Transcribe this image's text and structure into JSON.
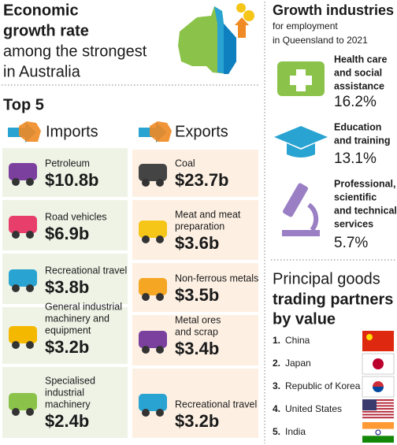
{
  "header": {
    "lines_bold": [
      "Economic",
      "growth rate"
    ],
    "lines": [
      "among the strongest",
      "in Australia"
    ]
  },
  "top5": {
    "title": "Top 5",
    "imports": {
      "title": "Imports",
      "items": [
        {
          "label": [
            "Petroleum"
          ],
          "value": "$10.8b"
        },
        {
          "label": [
            "Road vehicles"
          ],
          "value": "$6.9b"
        },
        {
          "label": [
            "Recreational travel"
          ],
          "value": "$3.8b"
        },
        {
          "label": [
            "General industrial",
            "machinery and",
            "equipment"
          ],
          "value": "$3.2b"
        },
        {
          "label": [
            "Specialised",
            "industrial",
            "machinery"
          ],
          "value": "$2.4b"
        }
      ]
    },
    "exports": {
      "title": "Exports",
      "items": [
        {
          "label": [
            "Coal"
          ],
          "value": "$23.7b"
        },
        {
          "label": [
            "Meat and meat",
            "preparation"
          ],
          "value": "$3.6b"
        },
        {
          "label": [
            "Non-ferrous metals"
          ],
          "value": "$3.5b"
        },
        {
          "label": [
            "Metal ores",
            "and scrap"
          ],
          "value": "$3.4b"
        },
        {
          "label": [
            "Recreational travel"
          ],
          "value": "$3.2b"
        }
      ]
    }
  },
  "growth": {
    "title": "Growth industries",
    "subtitle": [
      "for employment",
      "in Queensland to 2021"
    ],
    "items": [
      {
        "label": [
          "Health care",
          "and social",
          "assistance"
        ],
        "value": "16.2%"
      },
      {
        "label": [
          "Education",
          "and training"
        ],
        "value": "13.1%"
      },
      {
        "label": [
          "Professional,",
          "scientific",
          "and technical",
          "services"
        ],
        "value": "5.7%"
      }
    ]
  },
  "partners": {
    "title": "Principal goods",
    "title_bold": [
      "trading partners",
      "by value"
    ],
    "items": [
      {
        "rank": "1.",
        "name": "China"
      },
      {
        "rank": "2.",
        "name": "Japan"
      },
      {
        "rank": "3.",
        "name": "Republic of Korea"
      },
      {
        "rank": "4.",
        "name": "United States"
      },
      {
        "rank": "5.",
        "name": "India"
      }
    ]
  }
}
